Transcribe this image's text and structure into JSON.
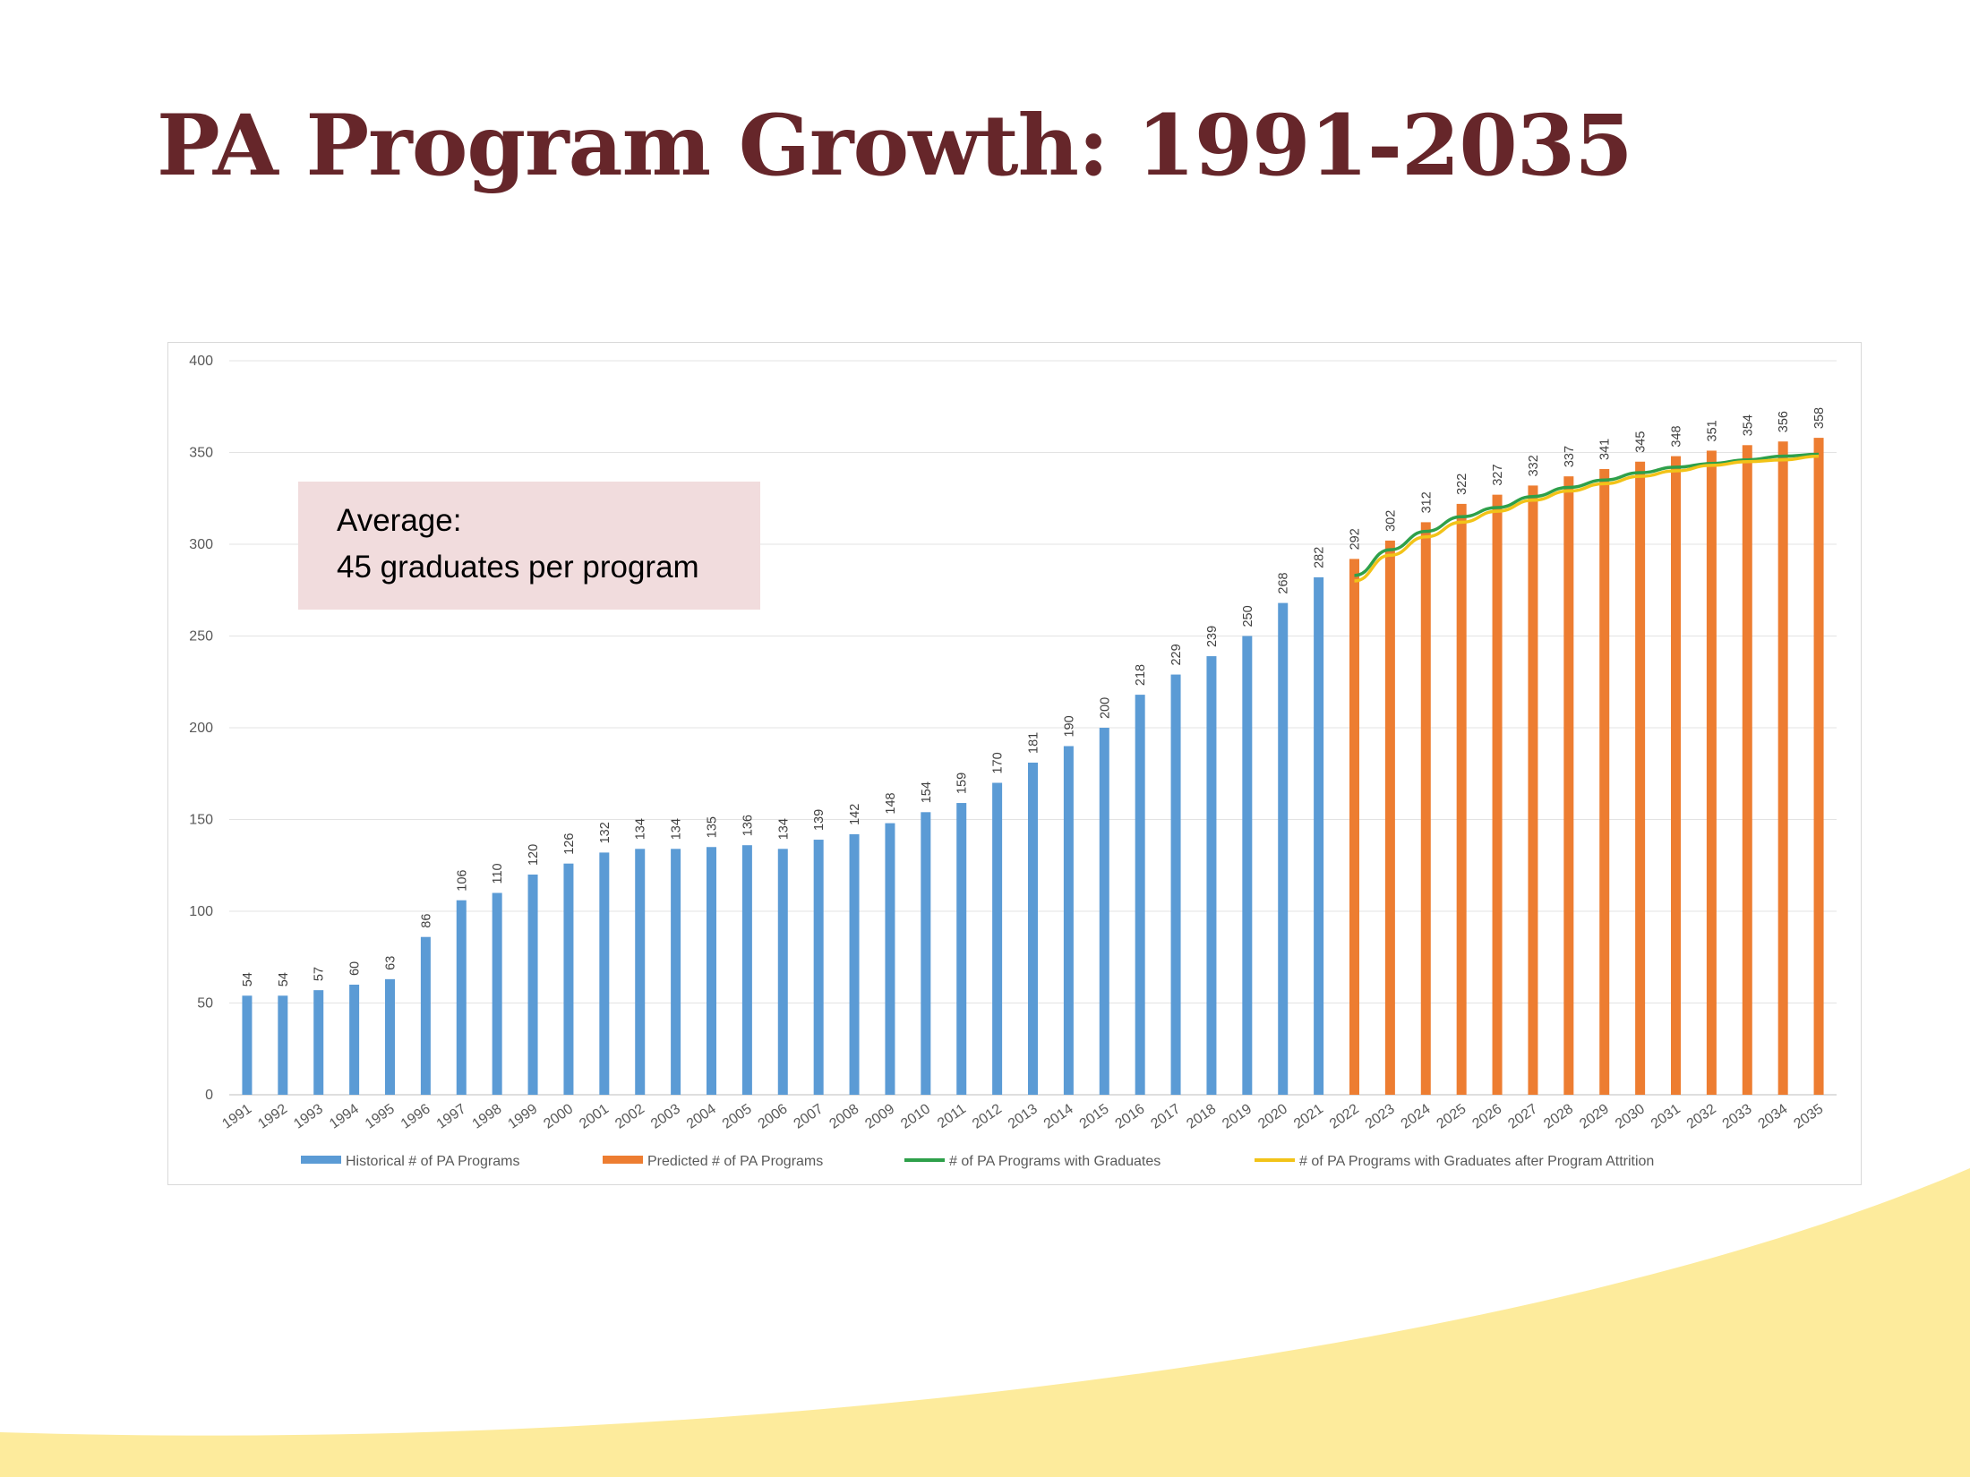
{
  "slide": {
    "title": "PA Program Growth: 1991-2035",
    "callout_line1": "Average:",
    "callout_line2": "45 graduates per program"
  },
  "colors": {
    "title": "#66262a",
    "historical": "#5b9bd5",
    "predicted": "#ed7d31",
    "graduates_line": "#2ea04a",
    "attrition_line": "#f2c318",
    "wave": "#fdeb9c",
    "callout_bg": "#f1dcdd"
  },
  "chart_data": {
    "type": "bar",
    "title": "",
    "xlabel": "",
    "ylabel": "",
    "ylim": [
      0,
      400
    ],
    "yticks": [
      0,
      50,
      100,
      150,
      200,
      250,
      300,
      350,
      400
    ],
    "grid": true,
    "legend_position": "bottom",
    "categories": [
      "1991",
      "1992",
      "1993",
      "1994",
      "1995",
      "1996",
      "1997",
      "1998",
      "1999",
      "2000",
      "2001",
      "2002",
      "2003",
      "2004",
      "2005",
      "2006",
      "2007",
      "2008",
      "2009",
      "2010",
      "2011",
      "2012",
      "2013",
      "2014",
      "2015",
      "2016",
      "2017",
      "2018",
      "2019",
      "2020",
      "2021",
      "2022",
      "2023",
      "2024",
      "2025",
      "2026",
      "2027",
      "2028",
      "2029",
      "2030",
      "2031",
      "2032",
      "2033",
      "2034",
      "2035"
    ],
    "series": [
      {
        "name": "Historical # of PA Programs",
        "kind": "bar",
        "values": [
          54,
          54,
          57,
          60,
          63,
          86,
          106,
          110,
          120,
          126,
          132,
          134,
          134,
          135,
          136,
          134,
          139,
          142,
          148,
          154,
          159,
          170,
          181,
          190,
          200,
          218,
          229,
          239,
          250,
          268,
          282,
          null,
          null,
          null,
          null,
          null,
          null,
          null,
          null,
          null,
          null,
          null,
          null,
          null,
          null
        ]
      },
      {
        "name": "Predicted # of PA Programs",
        "kind": "bar",
        "values": [
          null,
          null,
          null,
          null,
          null,
          null,
          null,
          null,
          null,
          null,
          null,
          null,
          null,
          null,
          null,
          null,
          null,
          null,
          null,
          null,
          null,
          null,
          null,
          null,
          null,
          null,
          null,
          null,
          null,
          null,
          null,
          292,
          302,
          312,
          322,
          327,
          332,
          337,
          341,
          345,
          348,
          351,
          354,
          356,
          358
        ]
      },
      {
        "name": "# of PA Programs with Graduates",
        "kind": "line",
        "values": [
          null,
          null,
          null,
          null,
          null,
          null,
          null,
          null,
          null,
          null,
          null,
          null,
          null,
          null,
          null,
          null,
          null,
          null,
          null,
          null,
          null,
          null,
          null,
          null,
          null,
          null,
          null,
          null,
          null,
          null,
          null,
          283,
          297,
          307,
          315,
          320,
          326,
          331,
          335,
          339,
          342,
          344,
          346,
          348,
          349
        ]
      },
      {
        "name": "# of PA Programs with Graduates after Program Attrition",
        "kind": "line",
        "values": [
          null,
          null,
          null,
          null,
          null,
          null,
          null,
          null,
          null,
          null,
          null,
          null,
          null,
          null,
          null,
          null,
          null,
          null,
          null,
          null,
          null,
          null,
          null,
          null,
          null,
          null,
          null,
          null,
          null,
          null,
          null,
          280,
          294,
          304,
          312,
          318,
          324,
          329,
          333,
          337,
          340,
          343,
          345,
          346,
          348
        ]
      }
    ]
  }
}
